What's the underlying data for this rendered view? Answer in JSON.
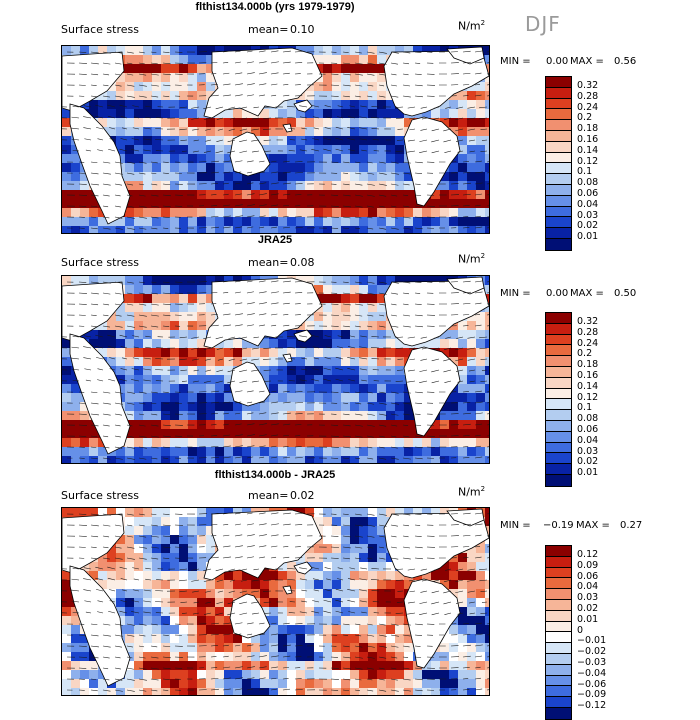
{
  "season": "DJF",
  "panels": [
    {
      "title": "flthist134.000b (yrs 1979-1979)",
      "field": "Surface stress",
      "mean_label": "mean=",
      "mean_value": "0.10",
      "units": "N/m",
      "units_sup": "2",
      "min_label": "MIN =",
      "min_value": "0.00",
      "max_label": "MAX =",
      "max_value": "0.56",
      "colorbar_labels": [
        "0.32",
        "0.28",
        "0.24",
        "0.2",
        "0.18",
        "0.16",
        "0.14",
        "0.12",
        "0.1",
        "0.08",
        "0.06",
        "0.04",
        "0.03",
        "0.02",
        "0.01"
      ]
    },
    {
      "title": "JRA25",
      "field": "Surface stress",
      "mean_label": "mean=",
      "mean_value": "0.08",
      "units": "N/m",
      "units_sup": "2",
      "min_label": "MIN =",
      "min_value": "0.00",
      "max_label": "MAX =",
      "max_value": "0.50",
      "colorbar_labels": [
        "0.32",
        "0.28",
        "0.24",
        "0.2",
        "0.18",
        "0.16",
        "0.14",
        "0.12",
        "0.1",
        "0.08",
        "0.06",
        "0.04",
        "0.03",
        "0.02",
        "0.01"
      ]
    },
    {
      "title": "flthist134.000b - JRA25",
      "field": "Surface stress",
      "mean_label": "mean=",
      "mean_value": "0.02",
      "units": "N/m",
      "units_sup": "2",
      "min_label": "MIN =",
      "min_value": "−0.19",
      "max_label": "MAX =",
      "max_value": "0.27",
      "colorbar_labels": [
        "0.12",
        "0.09",
        "0.06",
        "0.04",
        "0.03",
        "0.02",
        "0.01",
        "0",
        "−0.01",
        "−0.02",
        "−0.03",
        "−0.04",
        "−0.06",
        "−0.09",
        "−0.12"
      ]
    }
  ],
  "colors": {
    "seq": [
      "#8b0000",
      "#c71e10",
      "#dd4020",
      "#e96a3e",
      "#f19070",
      "#f6b598",
      "#f9d6c4",
      "#fbeee5",
      "#d6e6f7",
      "#b3cdf0",
      "#8eb0ec",
      "#6690e8",
      "#3e6cdf",
      "#1a44cc",
      "#0822a5",
      "#000f75"
    ],
    "div": [
      "#8b0000",
      "#c71e10",
      "#dd4020",
      "#e96a3e",
      "#f19070",
      "#f6b598",
      "#f9d6c4",
      "#fbeee5",
      "#ffffff",
      "#d6e6f7",
      "#b3cdf0",
      "#8eb0ec",
      "#6690e8",
      "#3e6cdf",
      "#1a44cc",
      "#000f75"
    ]
  }
}
